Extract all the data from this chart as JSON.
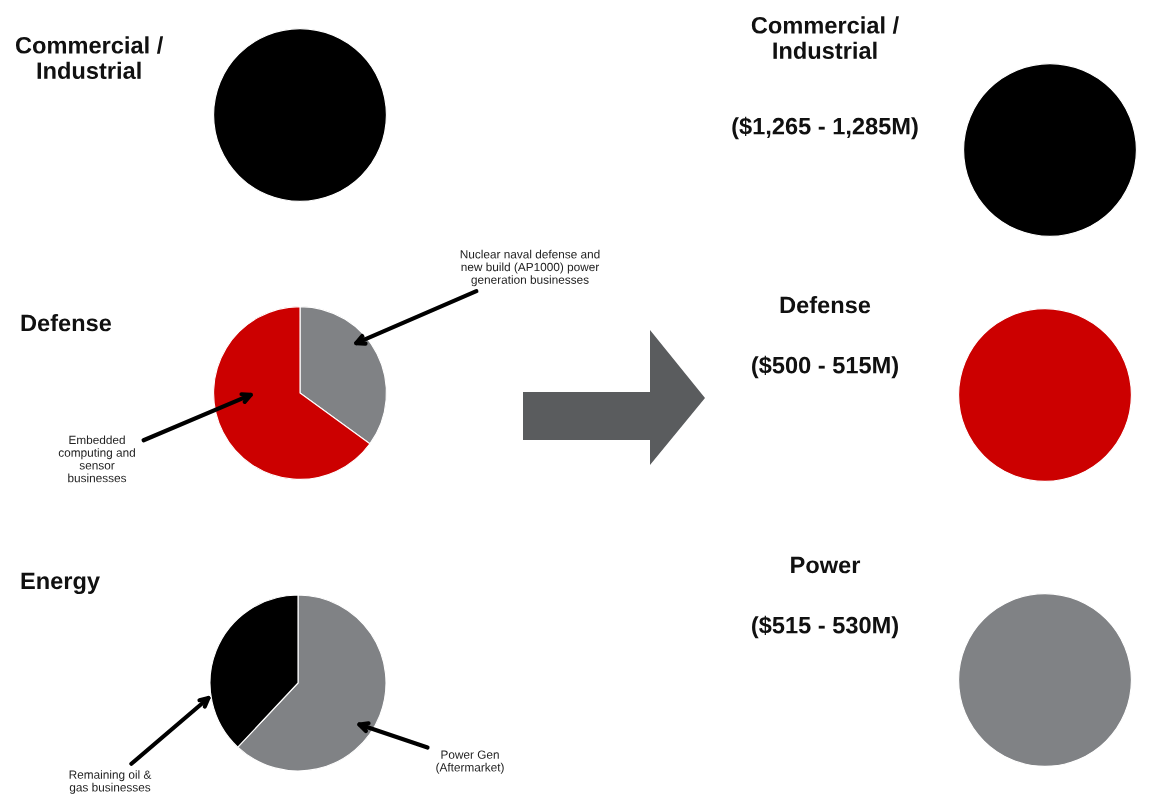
{
  "chart_data": [
    {
      "type": "pie",
      "title": "Commercial /\nIndustrial",
      "categories": [
        null
      ],
      "values": [
        100
      ],
      "colors": [
        "#000000"
      ]
    },
    {
      "type": "pie",
      "title": "Defense",
      "categories": [
        "Nuclear naval defense and\nnew build (AP1000) power\ngeneration businesses",
        "Embedded\ncomputing and\nsensor\nbusinesses"
      ],
      "values": [
        35,
        65
      ],
      "colors": [
        "#808285",
        "#cc0000"
      ]
    },
    {
      "type": "pie",
      "title": "Energy",
      "categories": [
        "Power Gen\n(Aftermarket)",
        "Remaining oil &\ngas businesses"
      ],
      "values": [
        62,
        38
      ],
      "colors": [
        "#808285",
        "#000000"
      ]
    },
    {
      "type": "pie",
      "title": "Commercial /\nIndustrial",
      "subtitle": "($1,265 - 1,285M)",
      "categories": [
        null
      ],
      "values": [
        100
      ],
      "colors": [
        "#000000"
      ]
    },
    {
      "type": "pie",
      "title": "Defense",
      "subtitle": "($500 - 515M)",
      "categories": [
        null
      ],
      "values": [
        100
      ],
      "colors": [
        "#cc0000"
      ]
    },
    {
      "type": "pie",
      "title": "Power",
      "subtitle": "($515 - 530M)",
      "categories": [
        null
      ],
      "values": [
        100
      ],
      "colors": [
        "#808285"
      ]
    }
  ]
}
